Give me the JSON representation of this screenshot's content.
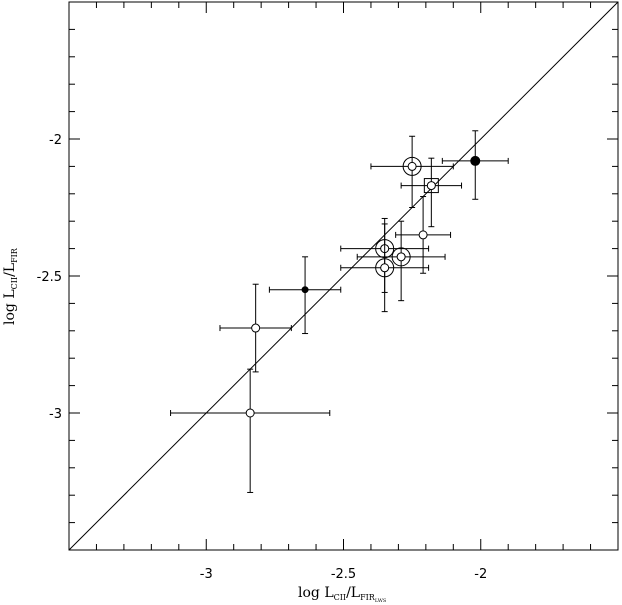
{
  "chart_data": {
    "type": "scatter",
    "title": "",
    "xlabel": {
      "prefix": "log  L",
      "sub1": "CII",
      "mid": "/L",
      "sub2": "FIR",
      "subsub": "LWS"
    },
    "ylabel": {
      "prefix": "log  L",
      "sub1": "CII",
      "mid": "/L",
      "sub2": "FIR"
    },
    "xlim": [
      -3.5,
      -1.5
    ],
    "ylim": [
      -3.5,
      -1.5
    ],
    "grid": false,
    "one_to_one_line": true,
    "x_ticks": [
      {
        "value": -3,
        "label": "-3"
      },
      {
        "value": -2.5,
        "label": "-2.5"
      },
      {
        "value": -2,
        "label": "-2"
      }
    ],
    "y_ticks": [
      {
        "value": -3,
        "label": "-3"
      },
      {
        "value": -2.5,
        "label": "-2.5"
      },
      {
        "value": -2,
        "label": "-2"
      }
    ],
    "points": [
      {
        "x": -2.84,
        "y": -3.0,
        "xerr": 0.29,
        "yerr_lo": 0.29,
        "yerr_hi": 0.16,
        "marker": "open-circle"
      },
      {
        "x": -2.82,
        "y": -2.69,
        "xerr": 0.13,
        "yerr_lo": 0.16,
        "yerr_hi": 0.16,
        "marker": "open-circle"
      },
      {
        "x": -2.64,
        "y": -2.55,
        "xerr": 0.13,
        "yerr_lo": 0.16,
        "yerr_hi": 0.12,
        "marker": "filled-small"
      },
      {
        "x": -2.35,
        "y": -2.4,
        "xerr": 0.16,
        "yerr_lo": 0.16,
        "yerr_hi": 0.11,
        "marker": "double-circle"
      },
      {
        "x": -2.35,
        "y": -2.47,
        "xerr": 0.16,
        "yerr_lo": 0.16,
        "yerr_hi": 0.16,
        "marker": "double-circle"
      },
      {
        "x": -2.29,
        "y": -2.43,
        "xerr": 0.16,
        "yerr_lo": 0.16,
        "yerr_hi": 0.13,
        "marker": "double-circle"
      },
      {
        "x": -2.21,
        "y": -2.35,
        "xerr": 0.1,
        "yerr_lo": 0.14,
        "yerr_hi": 0.14,
        "marker": "open-circle"
      },
      {
        "x": -2.25,
        "y": -2.1,
        "xerr": 0.15,
        "yerr_lo": 0.15,
        "yerr_hi": 0.11,
        "marker": "double-circle"
      },
      {
        "x": -2.18,
        "y": -2.17,
        "xerr": 0.11,
        "yerr_lo": 0.15,
        "yerr_hi": 0.1,
        "marker": "square-circle"
      },
      {
        "x": -2.02,
        "y": -2.08,
        "xerr": 0.12,
        "yerr_lo": 0.14,
        "yerr_hi": 0.11,
        "marker": "filled-circle"
      }
    ]
  }
}
